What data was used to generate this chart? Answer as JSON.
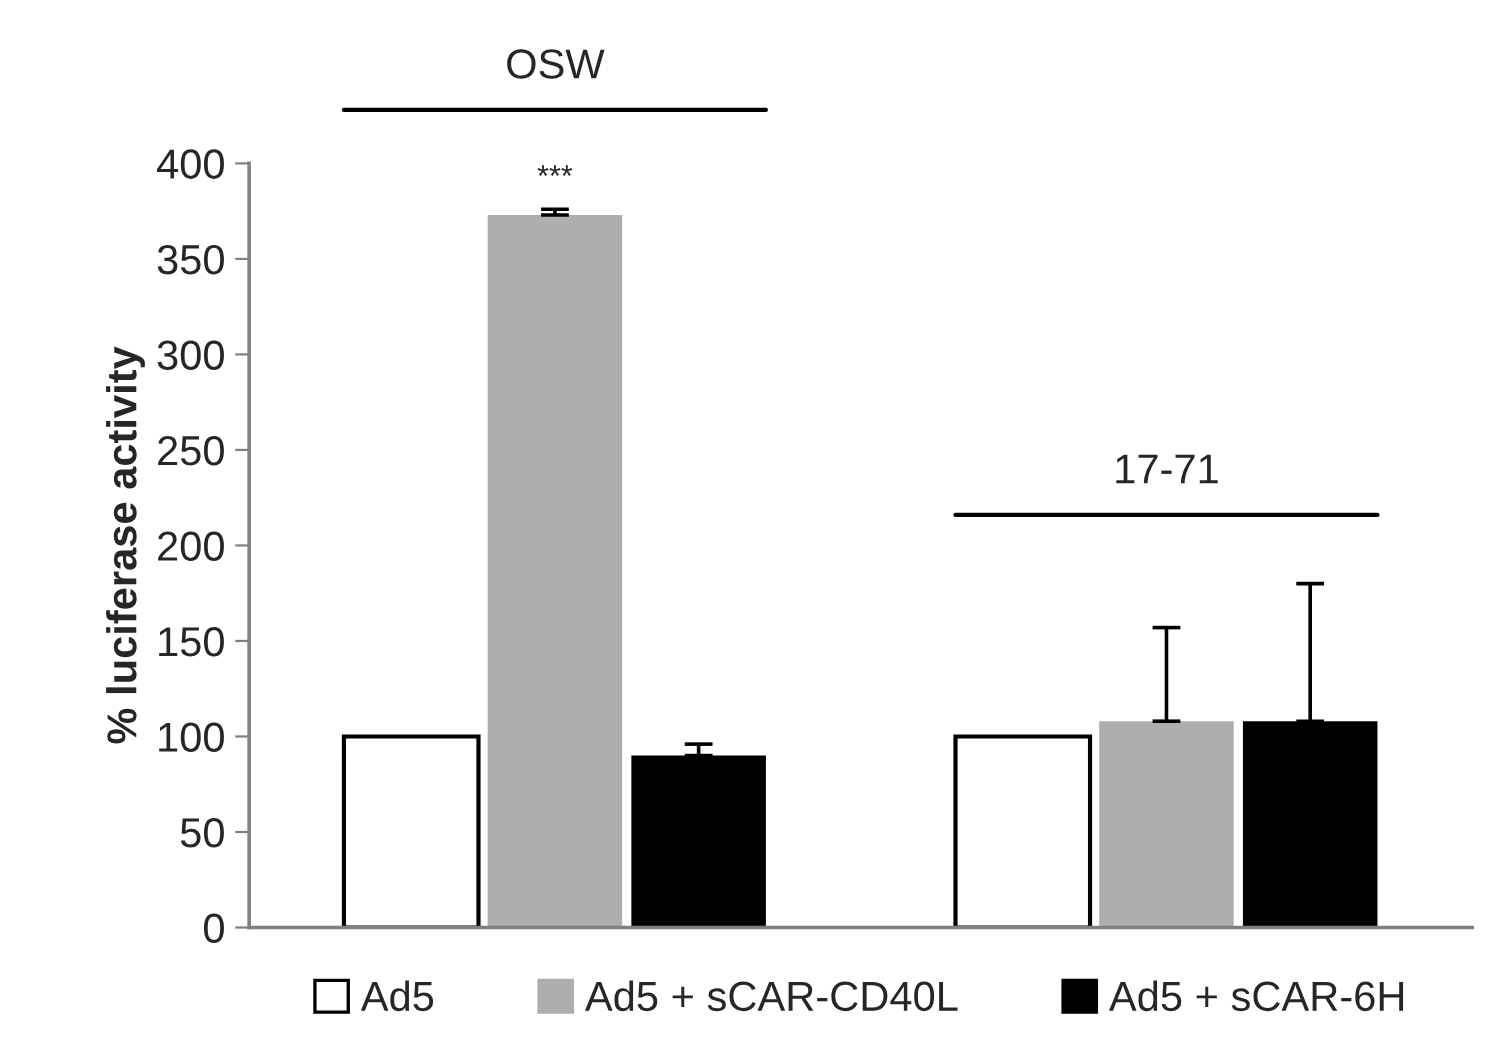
{
  "chart_data": {
    "type": "bar",
    "ylabel": "% luciferase activity",
    "categories": [
      "OSW",
      "17-71"
    ],
    "series": [
      {
        "name": "Ad5",
        "color": "#ffffff",
        "values": [
          100,
          100
        ],
        "errors": [
          null,
          null
        ]
      },
      {
        "name": "Ad5 + sCAR-CD40L",
        "color": "#aeaeae",
        "values": [
          373,
          108
        ],
        "errors": [
          [
            373,
            376
          ],
          [
            108,
            157
          ]
        ]
      },
      {
        "name": "Ad5 + sCAR-6H",
        "color": "#000000",
        "values": [
          90,
          108
        ],
        "errors": [
          [
            90,
            96
          ],
          [
            108,
            180
          ]
        ]
      }
    ],
    "ylim": [
      0,
      400
    ],
    "yticks": [
      0,
      50,
      100,
      150,
      200,
      250,
      300,
      350,
      400
    ],
    "annotations": [
      {
        "text": "***",
        "x": "OSW",
        "y": 376
      }
    ],
    "grid": false,
    "legend": "bottom"
  }
}
